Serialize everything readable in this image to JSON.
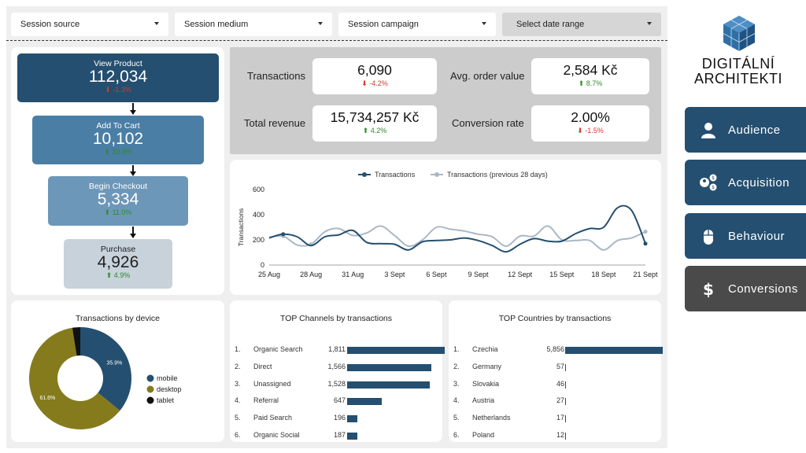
{
  "filters": [
    {
      "label": "Session source"
    },
    {
      "label": "Session medium"
    },
    {
      "label": "Session campaign"
    },
    {
      "label": "Select date range"
    }
  ],
  "funnel": [
    {
      "label": "View Product",
      "value": "112,034",
      "change": "⬇ -1.3%",
      "dir": "neg"
    },
    {
      "label": "Add To Cart",
      "value": "10,102",
      "change": "⬆ 10.9%",
      "dir": "pos"
    },
    {
      "label": "Begin Checkout",
      "value": "5,334",
      "change": "⬆ 11.0%",
      "dir": "pos"
    },
    {
      "label": "Purchase",
      "value": "4,926",
      "change": "⬆ 4.9%",
      "dir": "pos"
    }
  ],
  "kpis": [
    {
      "label": "Transactions",
      "value": "6,090",
      "change": "⬇ -4.2%",
      "dir": "neg"
    },
    {
      "label": "Avg. order value",
      "value": "2,584 Kč",
      "change": "⬆ 8.7%",
      "dir": "pos"
    },
    {
      "label": "Total revenue",
      "value": "15,734,257 Kč",
      "change": "⬆ 4.2%",
      "dir": "pos"
    },
    {
      "label": "Conversion rate",
      "value": "2.00%",
      "change": "⬇ -1.5%",
      "dir": "neg"
    }
  ],
  "chart_data": [
    {
      "type": "line",
      "ylabel": "Transactions",
      "ylim": [
        0,
        600
      ],
      "yticks": [
        "0",
        "200",
        "400",
        "600"
      ],
      "x_tick_labels": [
        "25 Aug",
        "28 Aug",
        "31 Aug",
        "3 Sept",
        "6 Sept",
        "9 Sept",
        "12 Sept",
        "15 Sept",
        "18 Sept",
        "21 Sept"
      ],
      "x": [
        "25 Aug",
        "26 Aug",
        "27 Aug",
        "28 Aug",
        "29 Aug",
        "30 Aug",
        "31 Aug",
        "1 Sept",
        "2 Sept",
        "3 Sept",
        "4 Sept",
        "5 Sept",
        "6 Sept",
        "7 Sept",
        "8 Sept",
        "9 Sept",
        "10 Sept",
        "11 Sept",
        "12 Sept",
        "13 Sept",
        "14 Sept",
        "15 Sept",
        "16 Sept",
        "17 Sept",
        "18 Sept",
        "19 Sept",
        "20 Sept",
        "21 Sept"
      ],
      "series": [
        {
          "name": "Transactions",
          "color": "#244f70",
          "values": [
            215,
            245,
            225,
            155,
            225,
            240,
            275,
            180,
            170,
            165,
            120,
            185,
            195,
            200,
            215,
            195,
            155,
            105,
            165,
            210,
            190,
            190,
            250,
            290,
            300,
            455,
            435,
            170
          ]
        },
        {
          "name": "Transactions (previous 28 days)",
          "color": "#a9b8c5",
          "values": [
            220,
            230,
            160,
            165,
            265,
            290,
            235,
            255,
            310,
            235,
            150,
            200,
            300,
            285,
            270,
            245,
            225,
            150,
            230,
            230,
            310,
            200,
            195,
            195,
            120,
            195,
            215,
            265
          ]
        }
      ],
      "legend_position": "top"
    },
    {
      "type": "pie",
      "title": "Transactions by device",
      "labels": [
        "mobile",
        "desktop",
        "tablet"
      ],
      "values": [
        35.9,
        61.6,
        2.5
      ],
      "value_labels": [
        "35.9%",
        "61.6%",
        ""
      ],
      "colors": [
        "#244f70",
        "#857b1c",
        "#111111"
      ]
    },
    {
      "type": "bar",
      "title": "TOP Channels by transactions",
      "categories": [
        "Organic Search",
        "Direct",
        "Unassigned",
        "Referral",
        "Paid Search",
        "Organic Social"
      ],
      "values": [
        1811,
        1566,
        1528,
        647,
        196,
        187
      ],
      "value_labels": [
        "1,811",
        "1,566",
        "1,528",
        "647",
        "196",
        "187"
      ],
      "ranks": [
        "1.",
        "2.",
        "3.",
        "4.",
        "5.",
        "6."
      ]
    },
    {
      "type": "bar",
      "title": "TOP Countries by transactions",
      "categories": [
        "Czechia",
        "Germany",
        "Slovakia",
        "Austria",
        "Netherlands",
        "Poland"
      ],
      "values": [
        5856,
        57,
        46,
        27,
        17,
        12
      ],
      "value_labels": [
        "5,856",
        "57",
        "46",
        "27",
        "17",
        "12"
      ],
      "ranks": [
        "1.",
        "2.",
        "3.",
        "4.",
        "5.",
        "6."
      ]
    }
  ],
  "brand": {
    "line1": "DIGITÁLNÍ",
    "line2": "ARCHITEKTI"
  },
  "nav": [
    {
      "label": "Audience",
      "icon": "person-icon",
      "color": "#244f70"
    },
    {
      "label": "Acquisition",
      "icon": "acquisition-icon",
      "color": "#244f70"
    },
    {
      "label": "Behaviour",
      "icon": "mouse-icon",
      "color": "#244f70"
    },
    {
      "label": "Conversions",
      "icon": "dollar-icon",
      "color": "#4a4a4a"
    }
  ]
}
